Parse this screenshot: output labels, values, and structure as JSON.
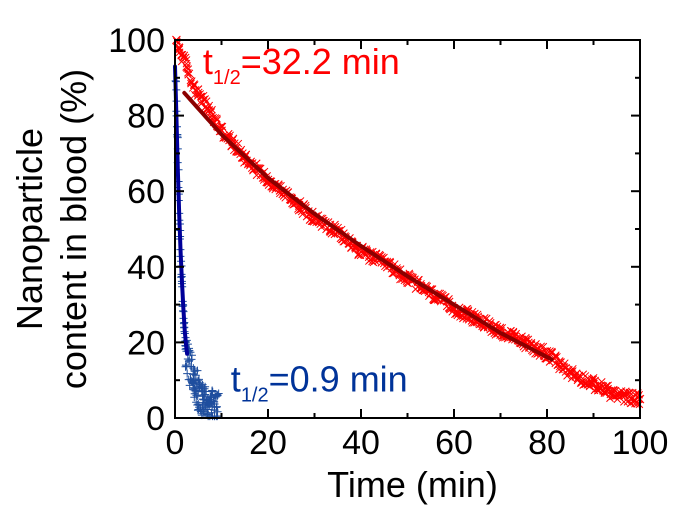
{
  "chart_data": {
    "type": "scatter",
    "xlabel": "Time (min)",
    "ylabel_line1": "Nanoparticle",
    "ylabel_line2": "content in blood (%)",
    "xlim": [
      0,
      100
    ],
    "ylim": [
      0,
      100
    ],
    "x_ticks": [
      0,
      20,
      40,
      60,
      80,
      100
    ],
    "y_ticks": [
      0,
      20,
      40,
      60,
      80,
      100
    ],
    "grid": false,
    "annotations": [
      {
        "prefix": "t",
        "sub": "1/2",
        "value": "=32.2 min",
        "color": "#ff0000",
        "x": 6,
        "y": 91
      },
      {
        "prefix": "t",
        "sub": "1/2",
        "value": "=0.9 min",
        "color": "#003399",
        "x": 12,
        "y": 7
      }
    ],
    "series": [
      {
        "marker": "x",
        "color": "#ff0000",
        "points": [
          [
            0.3,
            100
          ],
          [
            0.8,
            98
          ],
          [
            1.5,
            96
          ],
          [
            2.5,
            93
          ],
          [
            3.5,
            89
          ],
          [
            5,
            86
          ],
          [
            7,
            82
          ],
          [
            10,
            76
          ],
          [
            15,
            69
          ],
          [
            20,
            63
          ],
          [
            25,
            58
          ],
          [
            30,
            53
          ],
          [
            35,
            49
          ],
          [
            40,
            44
          ],
          [
            45,
            41
          ],
          [
            50,
            37
          ],
          [
            55,
            33
          ],
          [
            60,
            29
          ],
          [
            65,
            26
          ],
          [
            70,
            23
          ],
          [
            75,
            20
          ],
          [
            80,
            17
          ],
          [
            85,
            12
          ],
          [
            90,
            9
          ],
          [
            95,
            6
          ],
          [
            100,
            5
          ]
        ]
      },
      {
        "marker": "plus",
        "color": "#1f4e9e",
        "points": [
          [
            0.2,
            89
          ],
          [
            0.5,
            75
          ],
          [
            0.8,
            60
          ],
          [
            1.1,
            48
          ],
          [
            1.4,
            38
          ],
          [
            1.7,
            30
          ],
          [
            2.0,
            24
          ],
          [
            2.3,
            19
          ],
          [
            3,
            15
          ],
          [
            4,
            10
          ],
          [
            5,
            7
          ],
          [
            6,
            5
          ],
          [
            7,
            4
          ],
          [
            8,
            3
          ],
          [
            9,
            3
          ]
        ]
      },
      {
        "kind": "fit",
        "color": "#8b0000",
        "x_range": [
          2,
          81
        ],
        "points": [
          [
            2,
            86
          ],
          [
            10,
            75
          ],
          [
            20,
            63.5
          ],
          [
            30,
            54
          ],
          [
            40,
            45.5
          ],
          [
            50,
            37.5
          ],
          [
            60,
            30
          ],
          [
            70,
            22.5
          ],
          [
            81,
            15.5
          ]
        ]
      },
      {
        "kind": "fit",
        "color": "#000099",
        "x_range": [
          0,
          2.6
        ],
        "points": [
          [
            0,
            93
          ],
          [
            0.3,
            80
          ],
          [
            0.6,
            66
          ],
          [
            0.9,
            54
          ],
          [
            1.2,
            44
          ],
          [
            1.5,
            36
          ],
          [
            1.8,
            29
          ],
          [
            2.1,
            23
          ],
          [
            2.4,
            19
          ],
          [
            2.6,
            17
          ]
        ]
      }
    ]
  }
}
